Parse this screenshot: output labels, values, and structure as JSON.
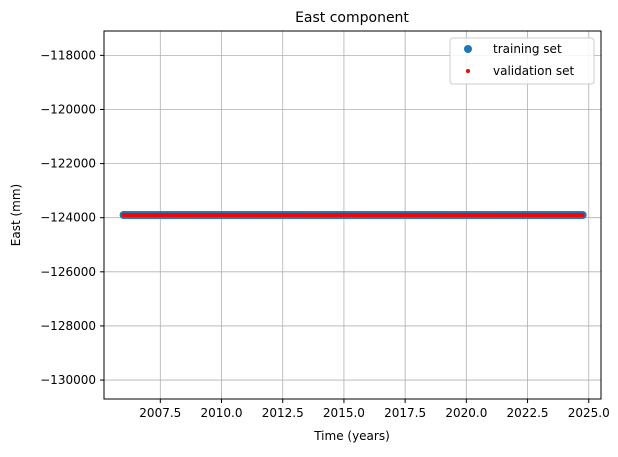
{
  "chart_data": {
    "type": "scatter",
    "title": "East component",
    "xlabel": "Time (years)",
    "ylabel": "East (mm)",
    "xlim": [
      2005.2,
      2025.5
    ],
    "ylim": [
      -130700,
      -117100
    ],
    "xticks": [
      2007.5,
      2010.0,
      2012.5,
      2015.0,
      2017.5,
      2020.0,
      2022.5,
      2025.0
    ],
    "xtick_labels": [
      "2007.5",
      "2010.0",
      "2012.5",
      "2015.0",
      "2017.5",
      "2020.0",
      "2022.5",
      "2025.0"
    ],
    "yticks": [
      -118000,
      -120000,
      -122000,
      -124000,
      -126000,
      -128000,
      -130000
    ],
    "ytick_labels": [
      "−118000",
      "−120000",
      "−122000",
      "−124000",
      "−126000",
      "−128000",
      "−130000"
    ],
    "grid": true,
    "legend_position": "top-right",
    "series": [
      {
        "name": "training set",
        "color": "#1f77b4",
        "marker": "circle-large",
        "x_range": [
          2006.0,
          2024.75
        ],
        "y": -123900
      },
      {
        "name": "validation set",
        "color": "#ff0000",
        "marker": "circle-small",
        "x_range": [
          2006.0,
          2024.75
        ],
        "y": -123900
      }
    ]
  }
}
